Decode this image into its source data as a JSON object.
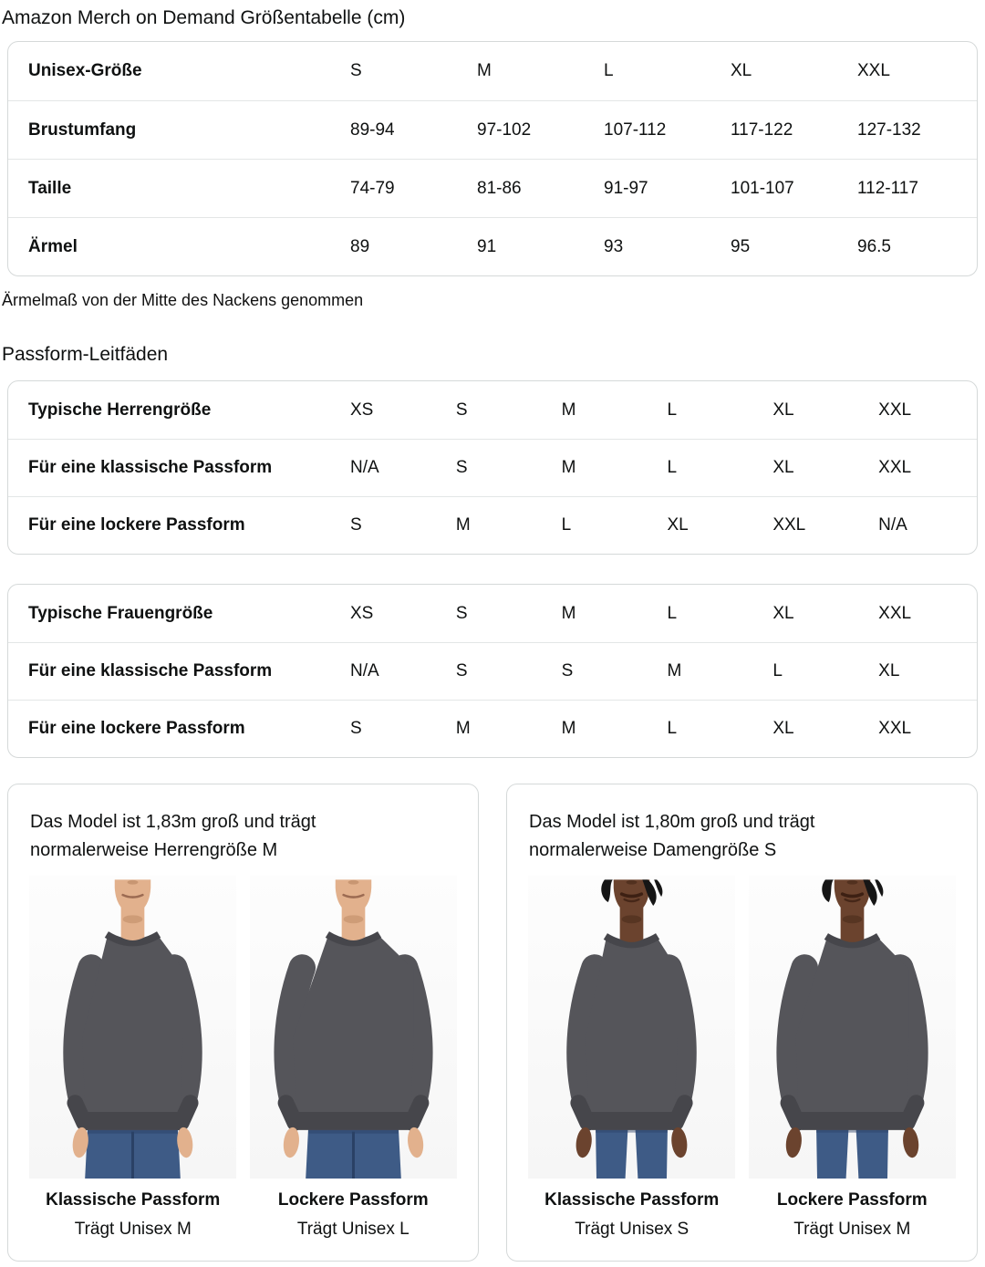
{
  "page": {
    "title": "Amazon Merch on Demand Größentabelle (cm)",
    "note": "Ärmelmaß von der Mitte des Nackens genommen",
    "fit_heading": "Passform-Leitfäden"
  },
  "size_table": {
    "header": [
      "Unisex-Größe",
      "S",
      "M",
      "L",
      "XL",
      "XXL"
    ],
    "rows": [
      {
        "label": "Brustumfang",
        "values": [
          "89-94",
          "97-102",
          "107-112",
          "117-122",
          "127-132"
        ]
      },
      {
        "label": "Taille",
        "values": [
          "74-79",
          "81-86",
          "91-97",
          "101-107",
          "112-117"
        ]
      },
      {
        "label": "Ärmel",
        "values": [
          "89",
          "91",
          "93",
          "95",
          "96.5"
        ]
      }
    ]
  },
  "fit_tables": [
    {
      "rows": [
        {
          "label": "Typische Herrengröße",
          "values": [
            "XS",
            "S",
            "M",
            "L",
            "XL",
            "XXL"
          ]
        },
        {
          "label": "Für eine klassische Passform",
          "values": [
            "N/A",
            "S",
            "M",
            "L",
            "XL",
            "XXL"
          ]
        },
        {
          "label": "Für eine lockere Passform",
          "values": [
            "S",
            "M",
            "L",
            "XL",
            "XXL",
            "N/A"
          ]
        }
      ]
    },
    {
      "rows": [
        {
          "label": "Typische Frauengröße",
          "values": [
            "XS",
            "S",
            "M",
            "L",
            "XL",
            "XXL"
          ]
        },
        {
          "label": "Für eine klassische Passform",
          "values": [
            "N/A",
            "S",
            "S",
            "M",
            "L",
            "XL"
          ]
        },
        {
          "label": "Für eine lockere Passform",
          "values": [
            "S",
            "M",
            "M",
            "L",
            "XL",
            "XXL"
          ]
        }
      ]
    }
  ],
  "model_cards": [
    {
      "heading": "Das Model ist 1,83m groß und trägt normalerweise Herrengröße M",
      "model": "male",
      "photos": [
        {
          "fit": "classic",
          "fit_label": "Klassische Passform",
          "size_label": "Trägt Unisex M",
          "photo_icon": "male-model-classic-fit-photo"
        },
        {
          "fit": "loose",
          "fit_label": "Lockere Passform",
          "size_label": "Trägt Unisex L",
          "photo_icon": "male-model-loose-fit-photo"
        }
      ]
    },
    {
      "heading": "Das Model ist 1,80m groß und trägt normalerweise Damengröße S",
      "model": "female",
      "photos": [
        {
          "fit": "classic",
          "fit_label": "Klassische Passform",
          "size_label": "Trägt Unisex S",
          "photo_icon": "female-model-classic-fit-photo"
        },
        {
          "fit": "loose",
          "fit_label": "Lockere Passform",
          "size_label": "Trägt Unisex M",
          "photo_icon": "female-model-loose-fit-photo"
        }
      ]
    }
  ],
  "colors": {
    "text": "#0f1111",
    "table_border": "#d5d9d9",
    "row_divider": "#e3e6e6",
    "sweatshirt": "#55555a",
    "sweatshirt_dark": "#46464b",
    "jeans": "#3e5b86",
    "jeans_dark": "#2a4165",
    "skin_light": "#e2b18d",
    "skin_shadow_light": "#bd8a66",
    "skin_dark": "#6b432e",
    "skin_shadow_dark": "#47291a",
    "hair_dark": "#161616",
    "lips_light": "#9c6b52",
    "lips_dark": "#3d2013"
  }
}
